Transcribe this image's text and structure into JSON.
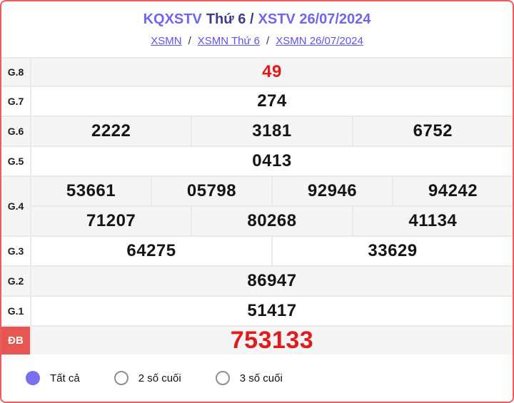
{
  "header": {
    "title_part1": "KQXSTV",
    "title_part2": "Thứ 6 /",
    "title_part3": "XSTV 26/07/2024",
    "breadcrumb": [
      {
        "label": "XSMN"
      },
      {
        "label": "XSMN Thứ 6"
      },
      {
        "label": "XSMN 26/07/2024"
      }
    ],
    "breadcrumb_separator": "/"
  },
  "results_table": {
    "rows": [
      {
        "label": "G.8",
        "values": [
          [
            "49"
          ]
        ],
        "highlight": true
      },
      {
        "label": "G.7",
        "values": [
          [
            "274"
          ]
        ]
      },
      {
        "label": "G.6",
        "values": [
          [
            "2222",
            "3181",
            "6752"
          ]
        ]
      },
      {
        "label": "G.5",
        "values": [
          [
            "0413"
          ]
        ]
      },
      {
        "label": "G.4",
        "values": [
          [
            "53661",
            "05798",
            "92946",
            "94242"
          ],
          [
            "71207",
            "80268",
            "41134"
          ]
        ]
      },
      {
        "label": "G.3",
        "values": [
          [
            "64275",
            "33629"
          ]
        ]
      },
      {
        "label": "G.2",
        "values": [
          [
            "86947"
          ]
        ]
      },
      {
        "label": "G.1",
        "values": [
          [
            "51417"
          ]
        ]
      },
      {
        "label": "ĐB",
        "values": [
          [
            "753133"
          ]
        ],
        "highlight": true,
        "special": true
      }
    ]
  },
  "filters": {
    "options": [
      {
        "label": "Tất cả",
        "selected": true
      },
      {
        "label": "2 số cuối",
        "selected": false
      },
      {
        "label": "3 số cuối",
        "selected": false
      }
    ]
  },
  "colors": {
    "border_red": "#ef5a5a",
    "accent_purple": "#6d66ee",
    "title_dark": "#3d3c8e",
    "link": "#5b55ee",
    "red_number": "#e81717",
    "special_label_bg": "#e65653",
    "row_shade": "#f5f5f6",
    "radio_selected": "#7a6fec"
  }
}
